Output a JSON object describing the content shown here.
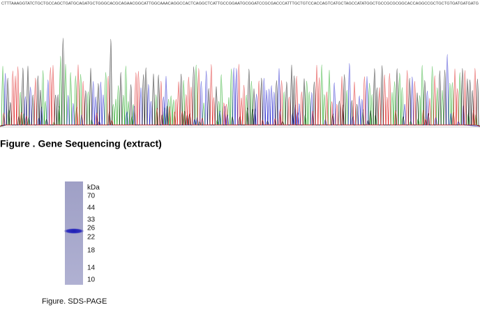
{
  "sequencing": {
    "sequence": "CTTTAAAGGTATCTGCTGCCAGCTGATGCAGATGCTGGGCACGCAGAACGGCATTGGCAAACAGGCCACTCAGGCTCATTGCCGGAATGCGGATCCGCGACCCATTTGCTGTCCACCAGTCATGCTAGCCATATGGCTGCCGCGCGGCACCAGGCCGCTGCTGTGATGATGATG",
    "caption": "Figure . Gene Sequencing (extract)"
  },
  "gel": {
    "unit": "kDa",
    "markers": [
      "70",
      "44",
      "33",
      "26",
      "22",
      "18",
      "14",
      "10"
    ],
    "caption": "Figure. SDS-PAGE"
  }
}
